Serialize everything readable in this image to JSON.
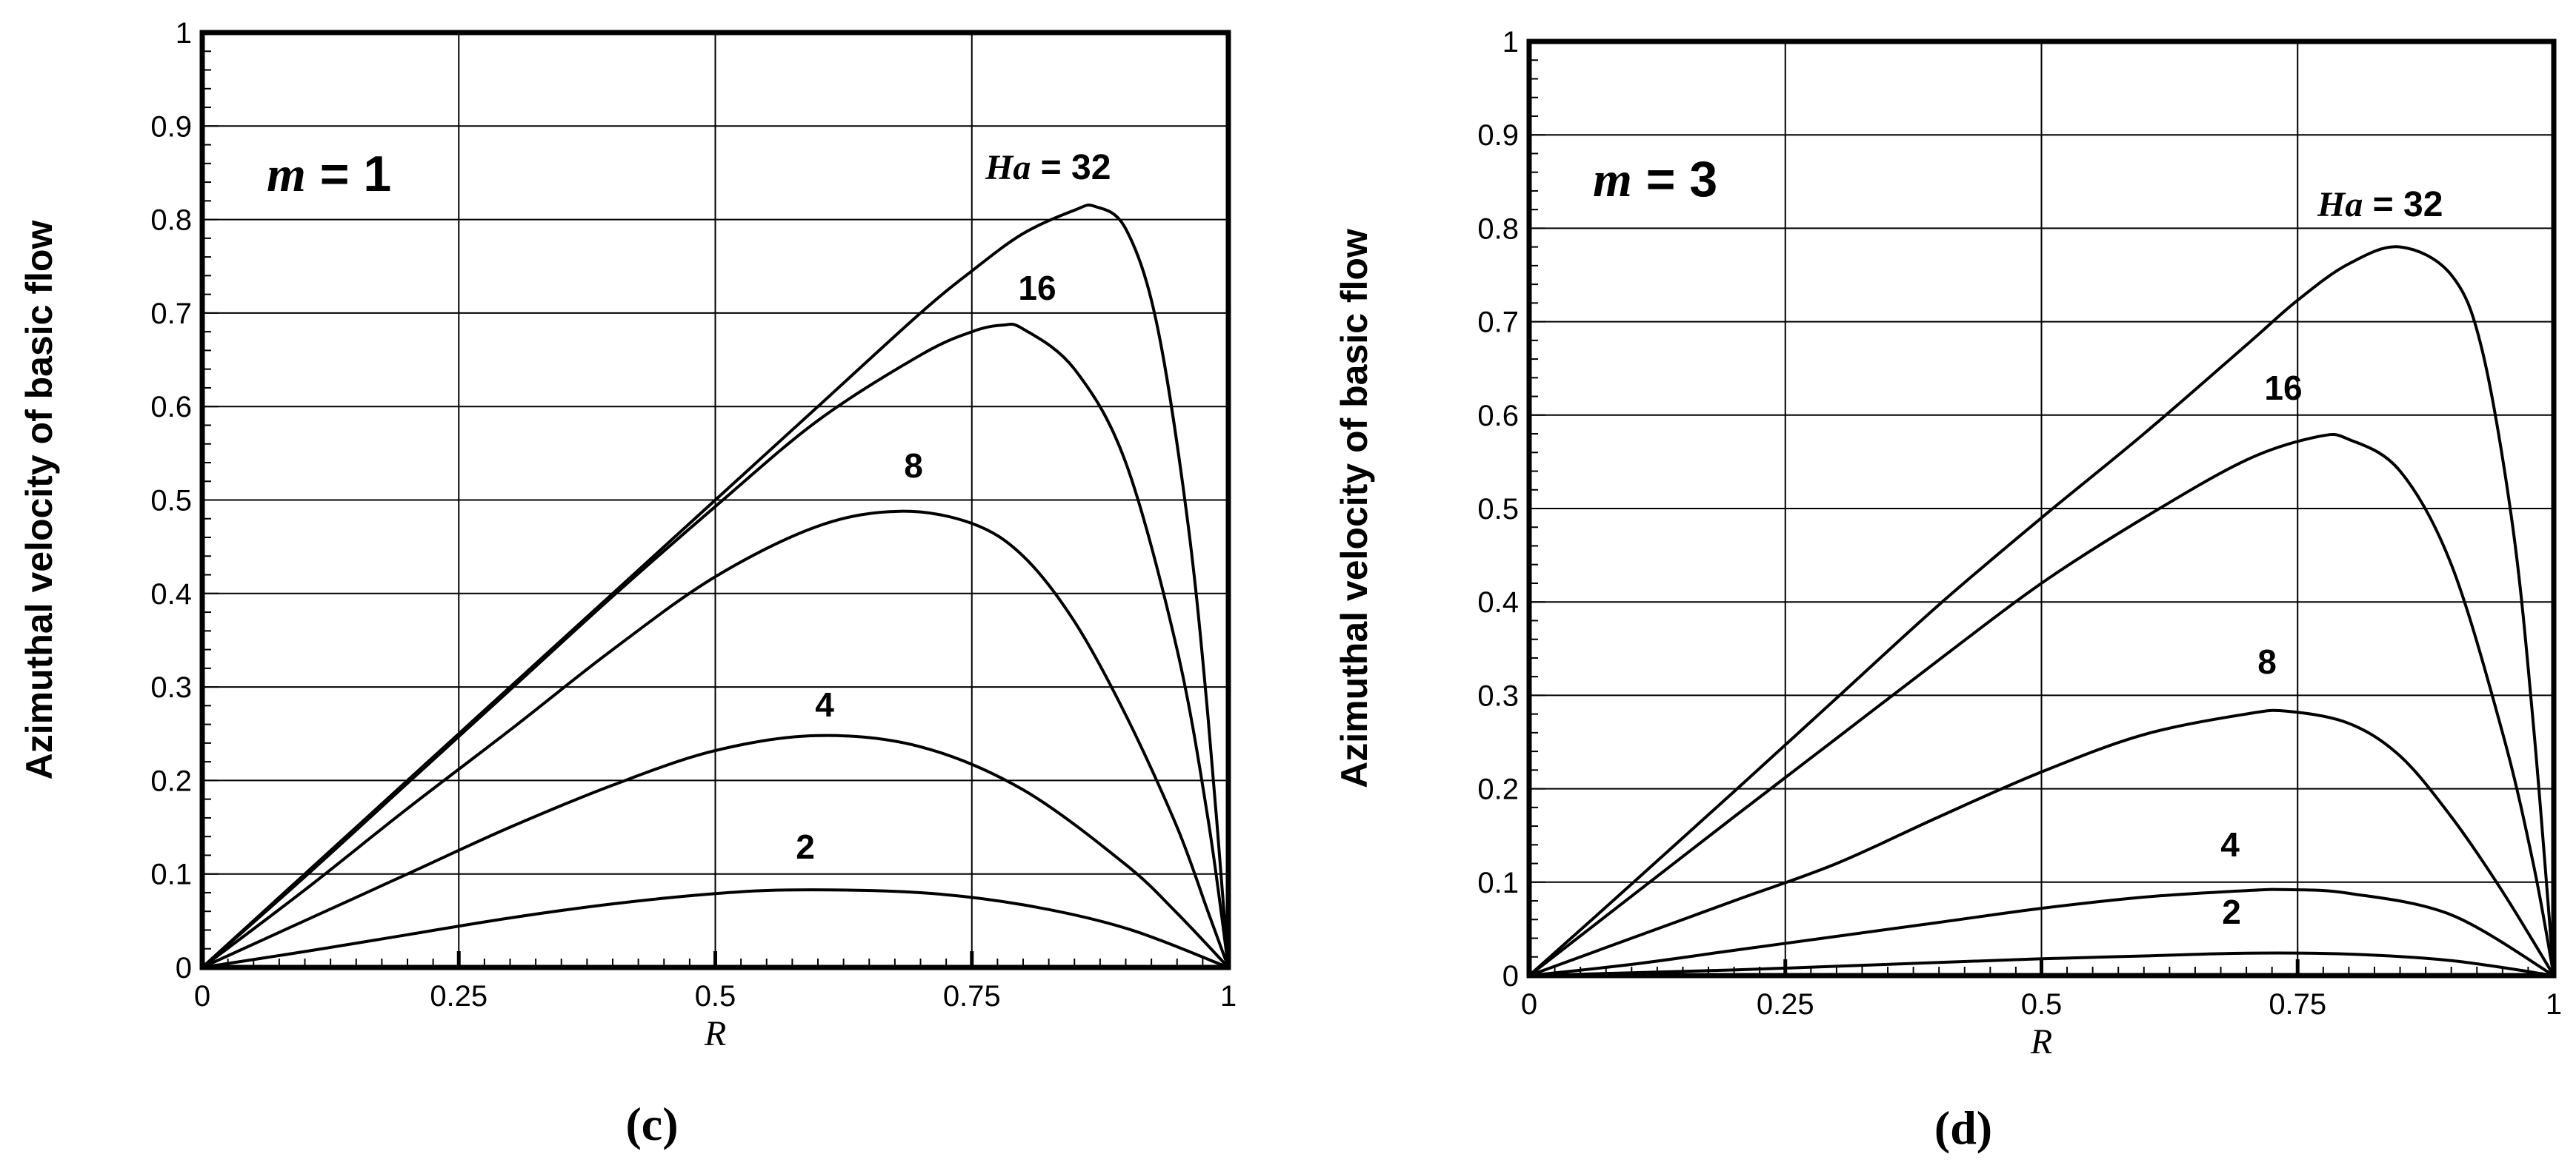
{
  "chart_data": [
    {
      "type": "line",
      "panel": "(c)",
      "annotation": {
        "var": "m",
        "rest": " = 1"
      },
      "legend_title": {
        "var": "Ha",
        "rest": " = 32"
      },
      "xlabel": "R",
      "ylabel": "Azimuthal velocity of basic flow",
      "xlim": [
        0,
        1
      ],
      "ylim": [
        0,
        1
      ],
      "xticks": [
        "0",
        "0.25",
        "0.5",
        "0.75",
        "1"
      ],
      "yticks": [
        "0",
        "0.1",
        "0.2",
        "0.3",
        "0.4",
        "0.5",
        "0.6",
        "0.7",
        "0.8",
        "0.9",
        "1"
      ],
      "series": [
        {
          "name": "32",
          "label": "",
          "x": [
            0,
            0.1,
            0.2,
            0.3,
            0.4,
            0.5,
            0.6,
            0.7,
            0.75,
            0.8,
            0.85,
            0.87,
            0.9,
            0.93,
            0.96,
            0.98,
            1.0
          ],
          "values": [
            0,
            0.1,
            0.2,
            0.3,
            0.4,
            0.5,
            0.6,
            0.7,
            0.745,
            0.785,
            0.81,
            0.814,
            0.79,
            0.69,
            0.48,
            0.27,
            0
          ]
        },
        {
          "name": "16",
          "label": "16",
          "x": [
            0,
            0.1,
            0.2,
            0.3,
            0.4,
            0.5,
            0.6,
            0.7,
            0.75,
            0.78,
            0.8,
            0.85,
            0.9,
            0.95,
            0.98,
            1.0
          ],
          "values": [
            0,
            0.097,
            0.197,
            0.297,
            0.397,
            0.493,
            0.585,
            0.655,
            0.68,
            0.687,
            0.683,
            0.64,
            0.54,
            0.34,
            0.16,
            0
          ]
        },
        {
          "name": "8",
          "label": "8",
          "x": [
            0,
            0.1,
            0.2,
            0.3,
            0.4,
            0.5,
            0.6,
            0.68,
            0.75,
            0.8,
            0.85,
            0.9,
            0.95,
            0.98,
            1.0
          ],
          "values": [
            0,
            0.083,
            0.17,
            0.254,
            0.34,
            0.418,
            0.472,
            0.488,
            0.475,
            0.44,
            0.37,
            0.27,
            0.15,
            0.06,
            0
          ]
        },
        {
          "name": "4",
          "label": "4",
          "x": [
            0,
            0.1,
            0.2,
            0.3,
            0.4,
            0.5,
            0.6,
            0.7,
            0.8,
            0.9,
            0.95,
            1.0
          ],
          "values": [
            0,
            0.05,
            0.1,
            0.15,
            0.195,
            0.232,
            0.248,
            0.236,
            0.19,
            0.11,
            0.058,
            0
          ]
        },
        {
          "name": "2",
          "label": "2",
          "x": [
            0,
            0.1,
            0.2,
            0.3,
            0.4,
            0.5,
            0.58,
            0.7,
            0.8,
            0.9,
            1.0
          ],
          "values": [
            0,
            0.017,
            0.035,
            0.053,
            0.068,
            0.079,
            0.083,
            0.08,
            0.067,
            0.042,
            0
          ]
        }
      ]
    },
    {
      "type": "line",
      "panel": "(d)",
      "annotation": {
        "var": "m",
        "rest": " = 3"
      },
      "legend_title": {
        "var": "Ha",
        "rest": " = 32"
      },
      "xlabel": "R",
      "ylabel": "Azimuthal velocity of basic flow",
      "xlim": [
        0,
        1
      ],
      "ylim": [
        0,
        1
      ],
      "xticks": [
        "0",
        "0.25",
        "0.5",
        "0.75",
        "1"
      ],
      "yticks": [
        "0",
        "0.1",
        "0.2",
        "0.3",
        "0.4",
        "0.5",
        "0.6",
        "0.7",
        "0.8",
        "0.9",
        "1"
      ],
      "series": [
        {
          "name": "32",
          "label": "",
          "x": [
            0,
            0.1,
            0.2,
            0.3,
            0.4,
            0.5,
            0.6,
            0.7,
            0.75,
            0.8,
            0.85,
            0.9,
            0.93,
            0.96,
            0.98,
            1.0
          ],
          "values": [
            0,
            0.098,
            0.197,
            0.297,
            0.397,
            0.49,
            0.58,
            0.675,
            0.723,
            0.762,
            0.78,
            0.75,
            0.67,
            0.48,
            0.27,
            0
          ]
        },
        {
          "name": "16",
          "label": "16",
          "x": [
            0,
            0.1,
            0.2,
            0.3,
            0.4,
            0.5,
            0.6,
            0.7,
            0.77,
            0.8,
            0.85,
            0.9,
            0.95,
            0.98,
            1.0
          ],
          "values": [
            0,
            0.085,
            0.17,
            0.254,
            0.338,
            0.42,
            0.49,
            0.552,
            0.577,
            0.574,
            0.54,
            0.44,
            0.26,
            0.12,
            0
          ]
        },
        {
          "name": "8",
          "label": "8",
          "x": [
            0,
            0.1,
            0.2,
            0.3,
            0.4,
            0.5,
            0.6,
            0.7,
            0.74,
            0.8,
            0.85,
            0.9,
            0.95,
            1.0
          ],
          "values": [
            0,
            0.04,
            0.08,
            0.12,
            0.17,
            0.218,
            0.258,
            0.28,
            0.283,
            0.27,
            0.235,
            0.17,
            0.09,
            0
          ]
        },
        {
          "name": "4",
          "label": "4",
          "x": [
            0,
            0.1,
            0.2,
            0.3,
            0.4,
            0.5,
            0.6,
            0.7,
            0.74,
            0.8,
            0.9,
            1.0
          ],
          "values": [
            0,
            0.012,
            0.027,
            0.042,
            0.057,
            0.072,
            0.084,
            0.091,
            0.092,
            0.088,
            0.065,
            0
          ]
        },
        {
          "name": "2",
          "label": "2",
          "x": [
            0,
            0.1,
            0.2,
            0.3,
            0.4,
            0.5,
            0.6,
            0.7,
            0.8,
            0.9,
            1.0
          ],
          "values": [
            0,
            0.003,
            0.006,
            0.01,
            0.014,
            0.018,
            0.021,
            0.024,
            0.023,
            0.016,
            0
          ]
        }
      ]
    }
  ]
}
